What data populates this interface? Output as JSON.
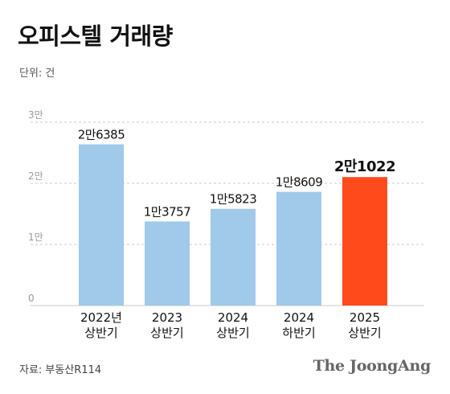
{
  "title": "오피스텔 거래량",
  "unit_label": "단위: 건",
  "source": "자료: 부동산R114",
  "logo_text": "The JoongAng",
  "chart_data": {
    "type": "bar",
    "title": "오피스텔 거래량",
    "xlabel": "",
    "ylabel": "",
    "ylim": [
      0,
      30000
    ],
    "y_ticks": [
      {
        "value": 0,
        "label": "0"
      },
      {
        "value": 10000,
        "label": "1만"
      },
      {
        "value": 20000,
        "label": "2만"
      },
      {
        "value": 30000,
        "label": "3만"
      }
    ],
    "grid": "horizontal-dashed",
    "categories": [
      [
        "2022년",
        "상반기"
      ],
      [
        "2023",
        "상반기"
      ],
      [
        "2024",
        "상반기"
      ],
      [
        "2024",
        "하반기"
      ],
      [
        "2025",
        "상반기"
      ]
    ],
    "values": [
      26385,
      13757,
      15823,
      18609,
      21022
    ],
    "data_labels": [
      "2만6385",
      "1만3757",
      "1만5823",
      "1만8609",
      "2만1022"
    ],
    "highlight_index": 4,
    "colors": {
      "bar": "#a0c9ea",
      "highlight": "#ff4a1c",
      "grid": "#c8c8c8",
      "tick": "#9a9a9a"
    }
  }
}
